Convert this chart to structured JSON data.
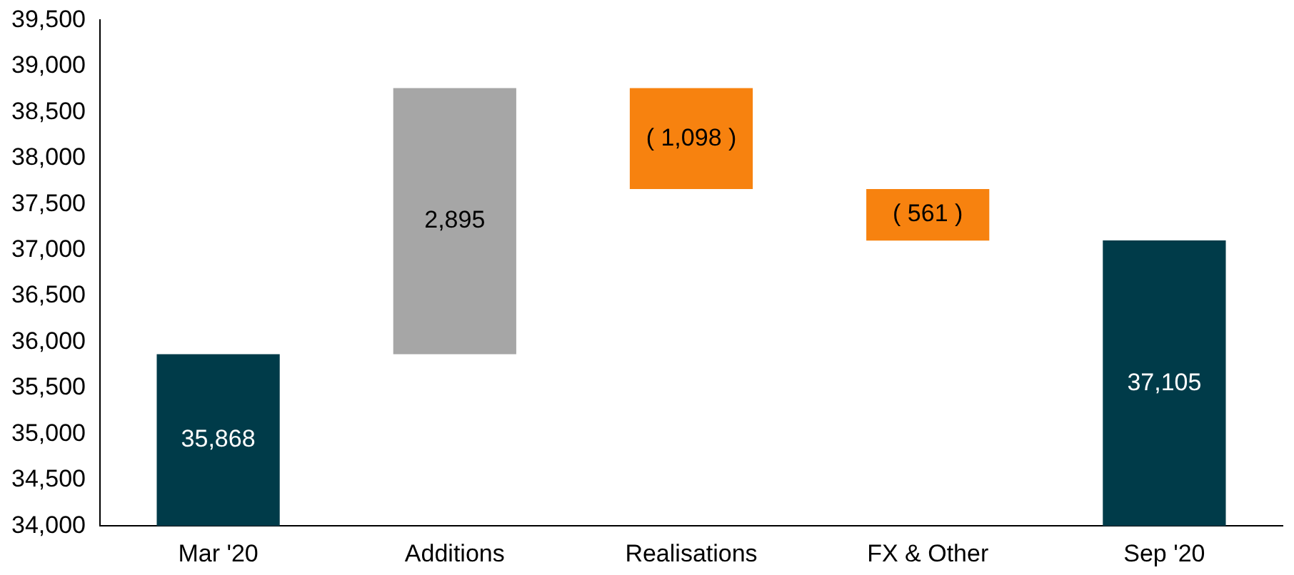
{
  "chart_data": {
    "type": "bar",
    "categories": [
      "Mar '20",
      "Additions",
      "Realisations",
      "FX & Other",
      "Sep '20"
    ],
    "values": [
      35868,
      2895,
      -1098,
      -561,
      37105
    ],
    "base": [
      null,
      35868,
      38763,
      37665,
      null
    ],
    "colors": [
      "#003b49",
      "#a6a6a6",
      "#f7820f",
      "#f7820f",
      "#003b49"
    ],
    "value_labels": [
      "35,868",
      "2,895",
      "( 1,098 )",
      "( 561 )",
      "37,105"
    ],
    "ylim": [
      34000,
      39500
    ],
    "yticks": [
      {
        "value": 34000,
        "label": "34,000"
      },
      {
        "value": 34500,
        "label": "34,500"
      },
      {
        "value": 35000,
        "label": "35,000"
      },
      {
        "value": 35500,
        "label": "35,500"
      },
      {
        "value": 36000,
        "label": "36,000"
      },
      {
        "value": 36500,
        "label": "36,500"
      },
      {
        "value": 37000,
        "label": "37,000"
      },
      {
        "value": 37500,
        "label": "37,500"
      },
      {
        "value": 38000,
        "label": "38,000"
      },
      {
        "value": 38500,
        "label": "38,500"
      },
      {
        "value": 39000,
        "label": "39,000"
      },
      {
        "value": 39500,
        "label": "39,500"
      }
    ],
    "grid": false,
    "legend": false
  }
}
